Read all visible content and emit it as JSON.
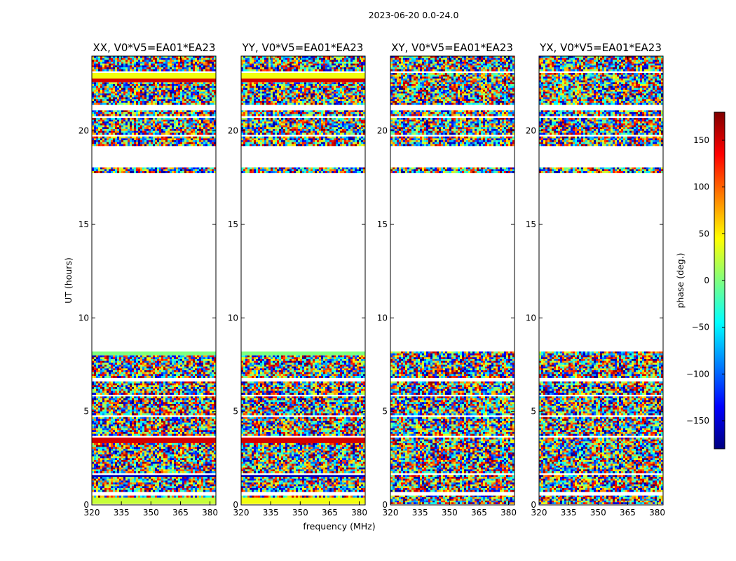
{
  "suptitle": "2023-06-20 0.0-24.0",
  "chart_data": {
    "type": "heatmap",
    "xlabel": "frequency (MHz)",
    "ylabel": "UT (hours)",
    "xlim": [
      320,
      383
    ],
    "ylim": [
      0,
      24
    ],
    "x_ticks": [
      320,
      335,
      350,
      365,
      380
    ],
    "x_tick_labels": [
      "320",
      "335",
      "350",
      "365",
      "380"
    ],
    "y_ticks": [
      0,
      5,
      10,
      15,
      20
    ],
    "y_tick_labels": [
      "0",
      "5",
      "10",
      "15",
      "20"
    ],
    "colorbar": {
      "label": "phase (deg.)",
      "range": [
        -180,
        180
      ],
      "ticks": [
        150,
        100,
        50,
        0,
        -50,
        -100,
        -150
      ],
      "tick_labels": [
        "150",
        "100",
        "50",
        "0",
        "−50",
        "−100",
        "−150"
      ],
      "colormap": [
        "#00007f",
        "#0000ff",
        "#007fff",
        "#00ffff",
        "#7fff7f",
        "#ffff00",
        "#ff7f00",
        "#ff0000",
        "#7f0000"
      ]
    },
    "panels": [
      {
        "title": "XX, V0*V5=EA01*EA23",
        "bands": [
          [
            0.05,
            0.4,
            "solid",
            25
          ],
          [
            0.4,
            0.5,
            "noise"
          ],
          [
            0.7,
            1.5,
            "noise"
          ],
          [
            1.5,
            1.6,
            "solid",
            -160
          ],
          [
            1.7,
            3.3,
            "noise"
          ],
          [
            3.3,
            3.6,
            "solid",
            150
          ],
          [
            3.7,
            4.7,
            "noise"
          ],
          [
            4.8,
            5.8,
            "noise"
          ],
          [
            5.9,
            6.6,
            "noise"
          ],
          [
            6.8,
            8.0,
            "noise"
          ],
          [
            8.0,
            8.2,
            "solid",
            0
          ],
          [
            17.75,
            18.05,
            "noise"
          ],
          [
            19.2,
            19.7,
            "noise"
          ],
          [
            19.8,
            20.7,
            "noise"
          ],
          [
            20.8,
            21.1,
            "noise"
          ],
          [
            21.4,
            22.6,
            "noise"
          ],
          [
            22.6,
            22.8,
            "solid",
            150
          ],
          [
            22.8,
            23.1,
            "solid",
            40
          ],
          [
            23.2,
            24.0,
            "noise"
          ]
        ]
      },
      {
        "title": "YY, V0*V5=EA01*EA23",
        "bands": [
          [
            0.05,
            0.4,
            "solid",
            40
          ],
          [
            0.4,
            0.5,
            "noise"
          ],
          [
            0.7,
            1.5,
            "noise"
          ],
          [
            1.5,
            1.6,
            "solid",
            -160
          ],
          [
            1.7,
            3.3,
            "noise"
          ],
          [
            3.3,
            3.6,
            "solid",
            150
          ],
          [
            3.7,
            4.7,
            "noise"
          ],
          [
            4.8,
            5.8,
            "noise"
          ],
          [
            5.9,
            6.6,
            "noise"
          ],
          [
            6.8,
            8.0,
            "noise"
          ],
          [
            8.0,
            8.2,
            "solid",
            0
          ],
          [
            17.75,
            18.05,
            "noise"
          ],
          [
            19.2,
            19.7,
            "noise"
          ],
          [
            19.8,
            20.7,
            "noise"
          ],
          [
            20.8,
            21.1,
            "noise"
          ],
          [
            21.4,
            22.6,
            "noise"
          ],
          [
            22.6,
            22.8,
            "solid",
            150
          ],
          [
            22.8,
            23.1,
            "solid",
            40
          ],
          [
            23.2,
            24.0,
            "noise"
          ]
        ]
      },
      {
        "title": "XY, V0*V5=EA01*EA23",
        "bands": [
          [
            0.05,
            0.5,
            "noise"
          ],
          [
            0.7,
            1.6,
            "noise"
          ],
          [
            1.7,
            3.6,
            "noise"
          ],
          [
            3.7,
            4.7,
            "noise"
          ],
          [
            4.8,
            5.8,
            "noise"
          ],
          [
            5.9,
            6.6,
            "noise"
          ],
          [
            6.8,
            8.2,
            "noise"
          ],
          [
            17.75,
            18.05,
            "noise"
          ],
          [
            19.2,
            19.7,
            "noise"
          ],
          [
            19.8,
            20.7,
            "noise"
          ],
          [
            20.8,
            21.1,
            "noise"
          ],
          [
            21.4,
            23.1,
            "noise"
          ],
          [
            23.2,
            24.0,
            "noise"
          ]
        ]
      },
      {
        "title": "YX, V0*V5=EA01*EA23",
        "bands": [
          [
            0.05,
            0.5,
            "noise"
          ],
          [
            0.7,
            1.6,
            "noise"
          ],
          [
            1.7,
            3.6,
            "noise"
          ],
          [
            3.7,
            4.7,
            "noise"
          ],
          [
            4.8,
            5.8,
            "noise"
          ],
          [
            5.9,
            6.6,
            "noise"
          ],
          [
            6.8,
            8.2,
            "noise"
          ],
          [
            17.75,
            18.05,
            "noise"
          ],
          [
            19.2,
            19.7,
            "noise"
          ],
          [
            19.8,
            20.7,
            "noise"
          ],
          [
            20.8,
            21.1,
            "noise"
          ],
          [
            21.4,
            23.1,
            "noise"
          ],
          [
            23.2,
            24.0,
            "noise"
          ]
        ]
      }
    ]
  }
}
